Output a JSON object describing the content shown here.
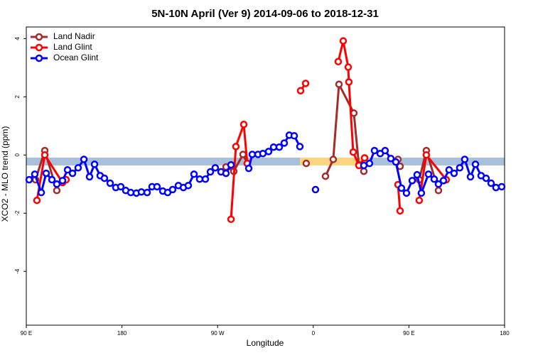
{
  "chart_data": {
    "type": "line",
    "title": "5N-10N April (Ver 9)   2014-09-06 to 2018-12-31",
    "x_label": "Longitude",
    "y_label": "XCO2 - MLO trend (ppm)",
    "xlim": [
      90,
      540
    ],
    "ylim": [
      -5.85,
      4.4
    ],
    "xticks": [
      {
        "value": 90,
        "label": "90 E"
      },
      180,
      {
        "value": 270,
        "label": "90 W"
      },
      {
        "value": 360,
        "label": "0"
      },
      {
        "value": 450,
        "label": "90 E"
      },
      {
        "value": 540,
        "label": "180"
      }
    ],
    "yticks": [
      -4,
      -2,
      0,
      2,
      4
    ],
    "legend": "top-left",
    "series": [
      {
        "name": "Land Nadir",
        "color": "#a52a2a",
        "x": [
          98.7,
          107.4,
          118.7,
          null,
          277.9,
          285.2,
          293.9,
          297.9,
          null,
          353.4,
          null,
          371.5,
          378.8,
          384.2,
          398.2,
          402.9,
          407.6,
          null,
          439.7,
          441.7,
          null,
          459.7,
          466.4,
          477.8
        ],
        "values": [
          -0.85,
          0.15,
          -1.22,
          null,
          -0.41,
          -0.56,
          0.02,
          -0.29,
          null,
          -0.29,
          null,
          -0.73,
          -0.15,
          2.43,
          1.44,
          -0.34,
          -0.56,
          null,
          -0.15,
          -0.39,
          null,
          -0.85,
          0.15,
          -1.22
        ]
      },
      {
        "name": "Land Glint",
        "color": "#ff0000",
        "x": [
          100.0,
          107.4,
          124.1,
          127.4,
          null,
          282.6,
          287.2,
          294.6,
          297.9,
          null,
          348.1,
          352.8,
          null,
          383.5,
          388.2,
          392.9,
          393.5,
          397.6,
          402.9,
          408.3,
          null,
          439.7,
          441.7,
          null,
          459.7,
          466.4,
          485.1
        ],
        "values": [
          -1.56,
          0.0,
          -0.95,
          -0.85,
          null,
          -2.21,
          0.29,
          1.05,
          -0.29,
          null,
          2.21,
          2.46,
          null,
          3.21,
          3.92,
          3.02,
          2.51,
          0.1,
          -0.36,
          -0.1,
          null,
          -1.02,
          -1.92,
          null,
          -1.56,
          0.0,
          -0.85
        ]
      },
      {
        "name": "Ocean Glint",
        "color": "#0000ff",
        "x": [
          92.7,
          98.0,
          104.1,
          108.7,
          114.1,
          118.7,
          124.1,
          128.8,
          133.5,
          138.8,
          144.2,
          149.5,
          154.2,
          159.5,
          163.5,
          168.9,
          174.2,
          178.9,
          183.6,
          188.3,
          193.6,
          198.3,
          203.7,
          208.3,
          213.0,
          218.4,
          223.0,
          227.7,
          233.1,
          237.8,
          242.4,
          247.8,
          253.1,
          258.5,
          263.2,
          267.8,
          273.2,
          277.9,
          282.6,
          null,
          299.3,
          302.6,
          308.0,
          312.6,
          318.0,
          322.7,
          328.0,
          332.7,
          337.4,
          342.1,
          347.4,
          null,
          362.1,
          null,
          407.6,
          412.9,
          417.6,
          423.0,
          427.6,
          433.0,
          437.7,
          443.0,
          447.7,
          453.1,
          457.7,
          461.7,
          468.4,
          473.8,
          477.8,
          482.5,
          487.8,
          492.5,
          497.8,
          502.5,
          507.9,
          512.6,
          517.9,
          522.6,
          527.3,
          531.9,
          537.3
        ],
        "values": [
          -0.85,
          -0.66,
          -1.29,
          -0.63,
          -0.85,
          -1.0,
          -0.88,
          -0.51,
          -0.63,
          -0.44,
          -0.15,
          -0.75,
          -0.32,
          -0.71,
          -0.8,
          -0.97,
          -1.12,
          -1.09,
          -1.22,
          -1.29,
          -1.31,
          -1.27,
          -1.29,
          -1.09,
          -1.09,
          -1.24,
          -1.29,
          -1.19,
          -1.05,
          -1.12,
          -1.05,
          -0.66,
          -0.83,
          -0.83,
          -0.58,
          -0.44,
          -0.58,
          -0.63,
          -0.34,
          null,
          -0.46,
          0.02,
          0.02,
          0.05,
          0.12,
          0.27,
          0.27,
          0.41,
          0.68,
          0.66,
          0.29,
          null,
          -1.19,
          null,
          -0.36,
          -0.29,
          0.15,
          0.05,
          0.15,
          -0.12,
          -0.24,
          -1.14,
          -1.31,
          -0.88,
          -0.68,
          -1.31,
          -0.66,
          -0.83,
          -1.0,
          -0.88,
          -0.51,
          -0.63,
          -0.44,
          -0.15,
          -0.75,
          -0.32,
          -0.71,
          -0.8,
          -0.97,
          -1.12,
          -1.09
        ]
      }
    ]
  }
}
